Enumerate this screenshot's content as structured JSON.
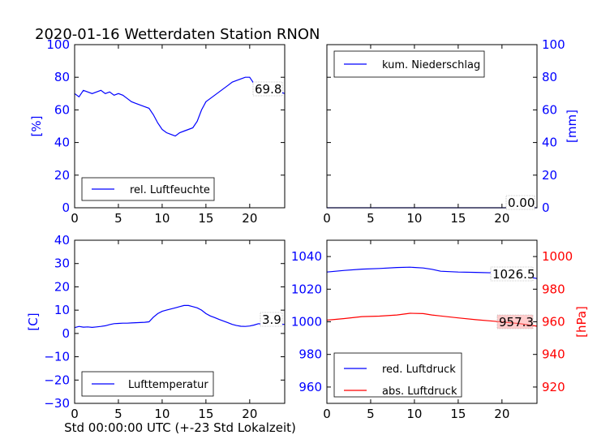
{
  "chart_data": [
    {
      "type": "line",
      "title": "2020-01-16 Wetterdaten Station RNON",
      "ylabel": "[%]",
      "xlim": [
        0,
        24
      ],
      "ylim": [
        0,
        100
      ],
      "xticks": [
        0,
        5,
        10,
        15,
        20
      ],
      "yticks": [
        0,
        20,
        40,
        60,
        80,
        100
      ],
      "legend": "lower-left",
      "annotation": "69.8",
      "colors": {
        "axis": "#0000ff",
        "series": "#0000ff"
      },
      "series": [
        {
          "name": "rel. Luftfeuchte",
          "x": [
            0,
            0.5,
            1,
            1.5,
            2,
            2.5,
            3,
            3.5,
            4,
            4.5,
            5,
            5.5,
            6,
            6.5,
            7,
            7.5,
            8,
            8.5,
            9,
            9.5,
            10,
            10.5,
            11,
            11.5,
            12,
            12.5,
            13,
            13.5,
            14,
            14.5,
            15,
            15.5,
            16,
            16.5,
            17,
            17.5,
            18,
            18.5,
            19,
            19.5,
            20,
            20.5,
            21,
            21.5,
            22,
            22.5,
            23,
            23.5,
            24
          ],
          "y": [
            70,
            68,
            72,
            71,
            70,
            71,
            72,
            70,
            71,
            69,
            70,
            69,
            67,
            65,
            64,
            63,
            62,
            61,
            57,
            52,
            48,
            46,
            45,
            44,
            46,
            47,
            48,
            49,
            53,
            60,
            65,
            67,
            69,
            71,
            73,
            75,
            77,
            78,
            79,
            80,
            80,
            76,
            72,
            70,
            71,
            70,
            70,
            71,
            70
          ]
        }
      ]
    },
    {
      "type": "line",
      "ylabel": "[mm]",
      "xlim": [
        0,
        24
      ],
      "ylim": [
        0,
        100
      ],
      "xticks": [
        0,
        5,
        10,
        15,
        20
      ],
      "yticks": [
        0,
        20,
        40,
        60,
        80,
        100
      ],
      "legend": "top-left",
      "annotation": "0.00",
      "colors": {
        "axis": "#0000ff",
        "series": "#0000ff"
      },
      "series": [
        {
          "name": "kum. Niederschlag",
          "x": [
            0,
            24
          ],
          "y": [
            0,
            0
          ]
        }
      ]
    },
    {
      "type": "line",
      "ylabel": "[C]",
      "xlabel": "Std 00:00:00 UTC (+-23 Std Lokalzeit)",
      "xlim": [
        0,
        24
      ],
      "ylim": [
        -30,
        40
      ],
      "xticks": [
        0,
        5,
        10,
        15,
        20
      ],
      "yticks": [
        -30,
        -20,
        -10,
        0,
        10,
        20,
        30,
        40
      ],
      "legend": "lower-left",
      "annotation": "3.9",
      "colors": {
        "axis": "#0000ff",
        "series": "#0000ff"
      },
      "series": [
        {
          "name": "Lufttemperatur",
          "x": [
            0,
            0.5,
            1,
            1.5,
            2,
            2.5,
            3,
            3.5,
            4,
            4.5,
            5,
            5.5,
            6,
            6.5,
            7,
            7.5,
            8,
            8.5,
            9,
            9.5,
            10,
            10.5,
            11,
            11.5,
            12,
            12.5,
            13,
            13.5,
            14,
            14.5,
            15,
            15.5,
            16,
            16.5,
            17,
            17.5,
            18,
            18.5,
            19,
            19.5,
            20,
            20.5,
            21,
            21.5,
            22,
            22.5,
            23,
            23.5,
            24
          ],
          "y": [
            2.5,
            3,
            2.7,
            2.8,
            2.6,
            2.8,
            3,
            3.3,
            3.8,
            4.2,
            4.3,
            4.4,
            4.4,
            4.5,
            4.6,
            4.7,
            4.8,
            5.0,
            7,
            8.5,
            9.5,
            10,
            10.5,
            11,
            11.5,
            12,
            12,
            11.5,
            11,
            10,
            8.5,
            7.5,
            6.8,
            6,
            5.3,
            4.6,
            3.9,
            3.4,
            3.1,
            3.0,
            3.2,
            3.6,
            4.2,
            4.0,
            4.1,
            3.9,
            3.9,
            3.9,
            3.9
          ]
        }
      ]
    },
    {
      "type": "line",
      "ylabel": "[hPa]",
      "xlim": [
        0,
        24
      ],
      "ylim": [
        950,
        1050
      ],
      "ylim_right": [
        910,
        1010
      ],
      "xticks": [
        0,
        5,
        10,
        15,
        20
      ],
      "yticks": [
        960,
        980,
        1000,
        1020,
        1040
      ],
      "yticks_right": [
        920,
        940,
        960,
        980,
        1000
      ],
      "legend": "lower-left",
      "annotations": [
        "1026.5",
        "957.3"
      ],
      "colors": {
        "left_axis": "#0000ff",
        "right_axis": "#ff0000",
        "red": "#0000ff",
        "abs": "#ff0000"
      },
      "series": [
        {
          "name": "red. Luftdruck",
          "axis": "left",
          "x": [
            0,
            2,
            4,
            6,
            8,
            9.5,
            11,
            12,
            13,
            15,
            17,
            19,
            21,
            22,
            24
          ],
          "y": [
            1030.5,
            1031.5,
            1032.3,
            1032.7,
            1033.3,
            1033.5,
            1033.0,
            1032.2,
            1031.0,
            1030.5,
            1030.3,
            1030.0,
            1029.2,
            1028.6,
            1026.5
          ]
        },
        {
          "name": "abs. Luftdruck",
          "axis": "right",
          "x": [
            0,
            2,
            4,
            6,
            8,
            9.5,
            11,
            12,
            13,
            15,
            17,
            19,
            21,
            22,
            24
          ],
          "y": [
            961.0,
            962.0,
            963.2,
            963.5,
            964.2,
            965.2,
            965.0,
            964.2,
            963.6,
            962.4,
            961.3,
            960.4,
            959.4,
            958.9,
            957.3
          ]
        }
      ]
    }
  ]
}
